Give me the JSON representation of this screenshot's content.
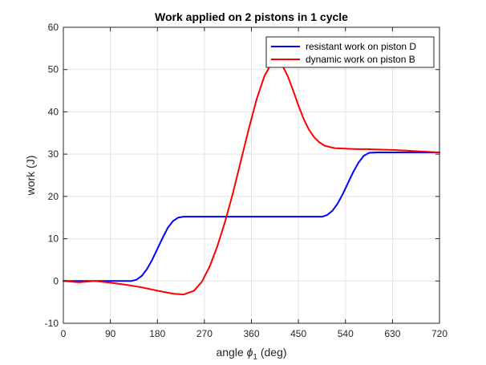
{
  "chart_data": {
    "type": "line",
    "title": "Work applied on 2 pistons in 1 cycle",
    "xlabel_prefix": "angle ",
    "xlabel_symbol": "ϕ",
    "xlabel_subscript": "1",
    "xlabel_suffix": " (deg)",
    "ylabel": "work (J)",
    "xlim": [
      0,
      720
    ],
    "ylim": [
      -10,
      60
    ],
    "xticks": [
      "0",
      "90",
      "180",
      "270",
      "360",
      "450",
      "540",
      "630",
      "720"
    ],
    "yticks": [
      "-10",
      "0",
      "10",
      "20",
      "30",
      "40",
      "50",
      "60"
    ],
    "grid": true,
    "legend_position": "top-right",
    "series": [
      {
        "name": "resistant work on piston D",
        "color": "#0000ff",
        "x": [
          0,
          60,
          100,
          130,
          140,
          150,
          160,
          170,
          180,
          190,
          200,
          210,
          220,
          230,
          240,
          270,
          300,
          360,
          420,
          470,
          495,
          505,
          515,
          525,
          535,
          545,
          555,
          565,
          575,
          585,
          600,
          650,
          720
        ],
        "y": [
          0,
          0,
          0,
          0,
          0.3,
          1.2,
          2.8,
          5.0,
          7.6,
          10.2,
          12.6,
          14.2,
          15.0,
          15.2,
          15.2,
          15.2,
          15.2,
          15.2,
          15.2,
          15.2,
          15.2,
          15.6,
          16.6,
          18.3,
          20.6,
          23.2,
          25.8,
          28.0,
          29.6,
          30.3,
          30.4,
          30.4,
          30.4
        ]
      },
      {
        "name": "dynamic work on piston B",
        "color": "#ff0000",
        "x": [
          0,
          30,
          60,
          90,
          120,
          150,
          180,
          210,
          230,
          250,
          265,
          280,
          295,
          310,
          325,
          340,
          355,
          370,
          385,
          400,
          410,
          420,
          430,
          440,
          450,
          460,
          470,
          480,
          490,
          500,
          520,
          540,
          560,
          580,
          600,
          630,
          660,
          690,
          720
        ],
        "y": [
          0,
          -0.3,
          0,
          -0.4,
          -0.9,
          -1.5,
          -2.3,
          -3.0,
          -3.2,
          -2.3,
          -0.2,
          3.4,
          8.3,
          14.2,
          21.0,
          28.5,
          36.0,
          43.0,
          48.5,
          51.8,
          52.0,
          50.8,
          48.3,
          45.0,
          41.5,
          38.3,
          35.8,
          34.0,
          32.8,
          32.0,
          31.4,
          31.3,
          31.2,
          31.2,
          31.1,
          31.0,
          30.8,
          30.6,
          30.4
        ]
      }
    ]
  }
}
